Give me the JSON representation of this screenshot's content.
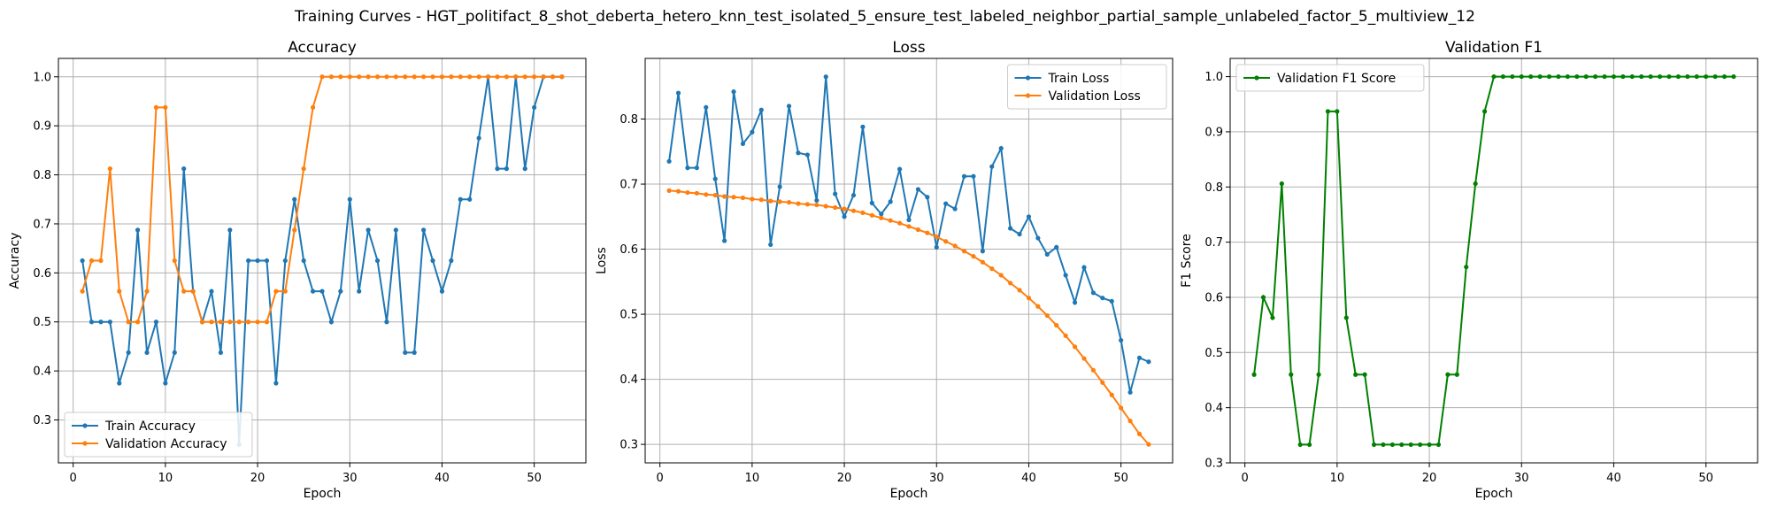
{
  "figure": {
    "suptitle": "Training Curves - HGT_politifact_8_shot_deberta_hetero_knn_test_isolated_5_ensure_test_labeled_neighbor_partial_sample_unlabeled_factor_5_multiview_12"
  },
  "colors": {
    "blue": "#1f77b4",
    "orange": "#ff7f0e",
    "green": "#008000",
    "grid": "#b0b0b0"
  },
  "chart_data": [
    {
      "type": "line",
      "title": "Accuracy",
      "xlabel": "Epoch",
      "ylabel": "Accuracy",
      "xlim": [
        -1.6,
        55.6
      ],
      "ylim": [
        0.2125,
        1.0375
      ],
      "xticks": [
        0,
        10,
        20,
        30,
        40,
        50
      ],
      "yticks": [
        0.3,
        0.4,
        0.5,
        0.6,
        0.7,
        0.8,
        0.9,
        1.0
      ],
      "ytick_labels": [
        "0.3",
        "0.4",
        "0.5",
        "0.6",
        "0.7",
        "0.8",
        "0.9",
        "1.0"
      ],
      "grid": true,
      "legend": "lower-left",
      "series": [
        {
          "name": "Train Accuracy",
          "color": "#1f77b4",
          "x": [
            1,
            2,
            3,
            4,
            5,
            6,
            7,
            8,
            9,
            10,
            11,
            12,
            13,
            14,
            15,
            16,
            17,
            18,
            19,
            20,
            21,
            22,
            23,
            24,
            25,
            26,
            27,
            28,
            29,
            30,
            31,
            32,
            33,
            34,
            35,
            36,
            37,
            38,
            39,
            40,
            41,
            42,
            43,
            44,
            45,
            46,
            47,
            48,
            49,
            50,
            51,
            52,
            53
          ],
          "y": [
            0.625,
            0.5,
            0.5,
            0.5,
            0.375,
            0.4375,
            0.6875,
            0.4375,
            0.5,
            0.375,
            0.4375,
            0.8125,
            0.5625,
            0.5,
            0.5625,
            0.4375,
            0.6875,
            0.25,
            0.625,
            0.625,
            0.625,
            0.375,
            0.625,
            0.75,
            0.625,
            0.5625,
            0.5625,
            0.5,
            0.5625,
            0.75,
            0.5625,
            0.6875,
            0.625,
            0.5,
            0.6875,
            0.4375,
            0.4375,
            0.6875,
            0.625,
            0.5625,
            0.625,
            0.75,
            0.75,
            0.875,
            1.0,
            0.8125,
            0.8125,
            1.0,
            0.8125,
            0.9375,
            1.0,
            1.0,
            1.0
          ]
        },
        {
          "name": "Validation Accuracy",
          "color": "#ff7f0e",
          "x": [
            1,
            2,
            3,
            4,
            5,
            6,
            7,
            8,
            9,
            10,
            11,
            12,
            13,
            14,
            15,
            16,
            17,
            18,
            19,
            20,
            21,
            22,
            23,
            24,
            25,
            26,
            27,
            28,
            29,
            30,
            31,
            32,
            33,
            34,
            35,
            36,
            37,
            38,
            39,
            40,
            41,
            42,
            43,
            44,
            45,
            46,
            47,
            48,
            49,
            50,
            51,
            52,
            53
          ],
          "y": [
            0.5625,
            0.625,
            0.625,
            0.8125,
            0.5625,
            0.5,
            0.5,
            0.5625,
            0.9375,
            0.9375,
            0.625,
            0.5625,
            0.5625,
            0.5,
            0.5,
            0.5,
            0.5,
            0.5,
            0.5,
            0.5,
            0.5,
            0.5625,
            0.5625,
            0.6875,
            0.8125,
            0.9375,
            1.0,
            1.0,
            1.0,
            1.0,
            1.0,
            1.0,
            1.0,
            1.0,
            1.0,
            1.0,
            1.0,
            1.0,
            1.0,
            1.0,
            1.0,
            1.0,
            1.0,
            1.0,
            1.0,
            1.0,
            1.0,
            1.0,
            1.0,
            1.0,
            1.0,
            1.0,
            1.0
          ]
        }
      ]
    },
    {
      "type": "line",
      "title": "Loss",
      "xlabel": "Epoch",
      "ylabel": "Loss",
      "xlim": [
        -1.6,
        55.6
      ],
      "ylim": [
        0.2716,
        0.8932
      ],
      "xticks": [
        0,
        10,
        20,
        30,
        40,
        50
      ],
      "yticks": [
        0.3,
        0.4,
        0.5,
        0.6,
        0.7,
        0.8
      ],
      "ytick_labels": [
        "0.3",
        "0.4",
        "0.5",
        "0.6",
        "0.7",
        "0.8"
      ],
      "grid": true,
      "legend": "upper-right",
      "series": [
        {
          "name": "Train Loss",
          "color": "#1f77b4",
          "x": [
            1,
            2,
            3,
            4,
            5,
            6,
            7,
            8,
            9,
            10,
            11,
            12,
            13,
            14,
            15,
            16,
            17,
            18,
            19,
            20,
            21,
            22,
            23,
            24,
            25,
            26,
            27,
            28,
            29,
            30,
            31,
            32,
            33,
            34,
            35,
            36,
            37,
            38,
            39,
            40,
            41,
            42,
            43,
            44,
            45,
            46,
            47,
            48,
            49,
            50,
            51,
            52,
            53
          ],
          "y": [
            0.735,
            0.84,
            0.725,
            0.725,
            0.818,
            0.708,
            0.613,
            0.842,
            0.762,
            0.78,
            0.814,
            0.607,
            0.696,
            0.82,
            0.748,
            0.745,
            0.675,
            0.865,
            0.685,
            0.65,
            0.683,
            0.788,
            0.671,
            0.654,
            0.673,
            0.723,
            0.645,
            0.692,
            0.68,
            0.603,
            0.67,
            0.662,
            0.712,
            0.712,
            0.597,
            0.727,
            0.755,
            0.632,
            0.623,
            0.65,
            0.617,
            0.592,
            0.603,
            0.56,
            0.518,
            0.572,
            0.533,
            0.525,
            0.52,
            0.46,
            0.38,
            0.433,
            0.427
          ]
        },
        {
          "name": "Validation Loss",
          "color": "#ff7f0e",
          "x": [
            1,
            2,
            3,
            4,
            5,
            6,
            7,
            8,
            9,
            10,
            11,
            12,
            13,
            14,
            15,
            16,
            17,
            18,
            19,
            20,
            21,
            22,
            23,
            24,
            25,
            26,
            27,
            28,
            29,
            30,
            31,
            32,
            33,
            34,
            35,
            36,
            37,
            38,
            39,
            40,
            41,
            42,
            43,
            44,
            45,
            46,
            47,
            48,
            49,
            50,
            51,
            52,
            53
          ],
          "y": [
            0.69,
            0.689,
            0.687,
            0.686,
            0.684,
            0.683,
            0.681,
            0.68,
            0.679,
            0.677,
            0.676,
            0.674,
            0.673,
            0.672,
            0.67,
            0.669,
            0.668,
            0.666,
            0.664,
            0.662,
            0.659,
            0.656,
            0.652,
            0.648,
            0.644,
            0.64,
            0.635,
            0.63,
            0.625,
            0.619,
            0.612,
            0.605,
            0.597,
            0.589,
            0.58,
            0.57,
            0.56,
            0.548,
            0.537,
            0.525,
            0.512,
            0.498,
            0.483,
            0.467,
            0.45,
            0.432,
            0.414,
            0.395,
            0.376,
            0.356,
            0.336,
            0.316,
            0.3
          ]
        }
      ]
    },
    {
      "type": "line",
      "title": "Validation F1",
      "xlabel": "Epoch",
      "ylabel": "F1 Score",
      "xlim": [
        -1.6,
        55.6
      ],
      "ylim": [
        0.3,
        1.033
      ],
      "xticks": [
        0,
        10,
        20,
        30,
        40,
        50
      ],
      "yticks": [
        0.3,
        0.4,
        0.5,
        0.6,
        0.7,
        0.8,
        0.9,
        1.0
      ],
      "ytick_labels": [
        "0.3",
        "0.4",
        "0.5",
        "0.6",
        "0.7",
        "0.8",
        "0.9",
        "1.0"
      ],
      "grid": true,
      "legend": "upper-left",
      "series": [
        {
          "name": "Validation F1 Score",
          "color": "#008000",
          "x": [
            1,
            2,
            3,
            4,
            5,
            6,
            7,
            8,
            9,
            10,
            11,
            12,
            13,
            14,
            15,
            16,
            17,
            18,
            19,
            20,
            21,
            22,
            23,
            24,
            25,
            26,
            27,
            28,
            29,
            30,
            31,
            32,
            33,
            34,
            35,
            36,
            37,
            38,
            39,
            40,
            41,
            42,
            43,
            44,
            45,
            46,
            47,
            48,
            49,
            50,
            51,
            52,
            53
          ],
          "y": [
            0.46,
            0.6,
            0.563,
            0.806,
            0.46,
            0.333,
            0.333,
            0.46,
            0.937,
            0.937,
            0.563,
            0.46,
            0.46,
            0.333,
            0.333,
            0.333,
            0.333,
            0.333,
            0.333,
            0.333,
            0.333,
            0.46,
            0.46,
            0.655,
            0.806,
            0.937,
            1.0,
            1.0,
            1.0,
            1.0,
            1.0,
            1.0,
            1.0,
            1.0,
            1.0,
            1.0,
            1.0,
            1.0,
            1.0,
            1.0,
            1.0,
            1.0,
            1.0,
            1.0,
            1.0,
            1.0,
            1.0,
            1.0,
            1.0,
            1.0,
            1.0,
            1.0,
            1.0
          ]
        }
      ]
    }
  ]
}
